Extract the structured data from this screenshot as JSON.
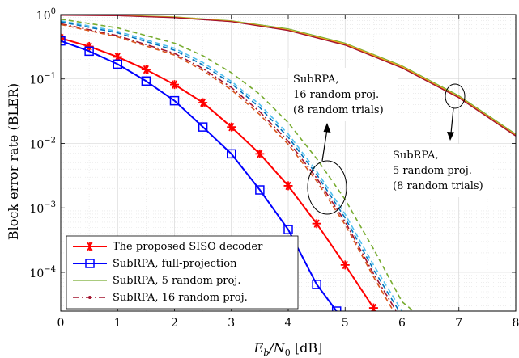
{
  "chart_data": {
    "type": "line",
    "title": "",
    "xlabel_main": "E",
    "xlabel_sub_b": "b",
    "xlabel_mid": "/N",
    "xlabel_sub_0": "0",
    "xlabel_unit": " [dB]",
    "ylabel": "Block error rate (BLER)",
    "xlim": [
      0,
      8
    ],
    "ylim": [
      2.5e-05,
      1
    ],
    "yscale": "log",
    "grid": true,
    "legend_position": "bottom-left",
    "x_ticks": [
      0,
      1,
      2,
      3,
      4,
      5,
      6,
      7,
      8
    ],
    "x_tick_labels": [
      "0",
      "1",
      "2",
      "3",
      "4",
      "5",
      "6",
      "7",
      "8"
    ],
    "y_ticks": [
      {
        "value": 1,
        "base": "10",
        "exp": "0"
      },
      {
        "value": 0.1,
        "base": "10",
        "exp": "−1"
      },
      {
        "value": 0.01,
        "base": "10",
        "exp": "−2"
      },
      {
        "value": 0.001,
        "base": "10",
        "exp": "−3"
      },
      {
        "value": 0.0001,
        "base": "10",
        "exp": "−4"
      }
    ],
    "legend": [
      {
        "label": "The proposed SISO decoder",
        "color": "#ff0000",
        "style": "solid",
        "marker": "star"
      },
      {
        "label": "SubRPA, full-projection",
        "color": "#0000ff",
        "style": "solid",
        "marker": "square"
      },
      {
        "label": "SubRPA, 5 random proj.",
        "color": "#77ac30",
        "style": "solid",
        "marker": "none"
      },
      {
        "label": "SubRPA, 16 random proj.",
        "color": "#a2142f",
        "style": "dashdot",
        "marker": "dot"
      }
    ],
    "series": [
      {
        "name": "The proposed SISO decoder",
        "color": "#ff0000",
        "style": "solid",
        "width": 2,
        "marker": "star",
        "x": [
          0,
          0.5,
          1,
          1.5,
          2,
          2.5,
          3,
          3.5,
          4,
          4.5,
          5,
          5.5
        ],
        "y": [
          0.43,
          0.32,
          0.22,
          0.14,
          0.082,
          0.043,
          0.018,
          0.0069,
          0.0022,
          0.00057,
          0.00013,
          2.8e-05
        ]
      },
      {
        "name": "SubRPA, full-projection",
        "color": "#0000ff",
        "style": "solid",
        "width": 2,
        "marker": "square",
        "x": [
          0,
          0.5,
          1,
          1.5,
          2,
          2.5,
          3,
          3.5,
          4,
          4.5,
          4.85
        ],
        "y": [
          0.39,
          0.27,
          0.17,
          0.093,
          0.046,
          0.018,
          0.0069,
          0.0019,
          0.00046,
          6.5e-05,
          2.5e-05
        ]
      },
      {
        "name": "",
        "color": "#77ac30",
        "style": "solid",
        "width": 1.2,
        "marker": "none",
        "x": [
          0,
          1,
          2,
          3,
          4,
          5,
          6,
          7,
          8
        ],
        "y": [
          0.99,
          0.98,
          0.92,
          0.8,
          0.6,
          0.36,
          0.16,
          0.055,
          0.014
        ]
      },
      {
        "name": "",
        "color": "#edb120",
        "style": "solid",
        "width": 1.2,
        "marker": "none",
        "x": [
          0,
          1,
          2,
          3,
          4,
          5,
          6,
          7,
          8
        ],
        "y": [
          0.985,
          0.97,
          0.91,
          0.79,
          0.58,
          0.35,
          0.155,
          0.053,
          0.0135
        ]
      },
      {
        "name": "",
        "color": "#d95319",
        "style": "solid",
        "width": 1.2,
        "marker": "none",
        "x": [
          0,
          1,
          2,
          3,
          4,
          5,
          6,
          7,
          8
        ],
        "y": [
          0.98,
          0.965,
          0.9,
          0.78,
          0.57,
          0.34,
          0.15,
          0.052,
          0.0133
        ]
      },
      {
        "name": "",
        "color": "#a2142f",
        "style": "solid",
        "width": 1.2,
        "marker": "none",
        "x": [
          0,
          1,
          2,
          3,
          4,
          5,
          6,
          7,
          8
        ],
        "y": [
          0.975,
          0.96,
          0.895,
          0.775,
          0.565,
          0.335,
          0.148,
          0.051,
          0.013
        ]
      },
      {
        "name": "",
        "color": "#77ac30",
        "style": "dashed",
        "width": 1.6,
        "marker": "none",
        "x": [
          0,
          1,
          2,
          2.5,
          3,
          3.5,
          4,
          4.5,
          5,
          5.5,
          6,
          6.2
        ],
        "y": [
          0.85,
          0.62,
          0.36,
          0.23,
          0.125,
          0.058,
          0.021,
          0.0058,
          0.00135,
          0.00023,
          3.5e-05,
          2.5e-05
        ]
      },
      {
        "name": "",
        "color": "#4dbeee",
        "style": "dashed",
        "width": 1.6,
        "marker": "none",
        "x": [
          0,
          1,
          2,
          2.5,
          3,
          3.5,
          4,
          4.5,
          5,
          5.5,
          6.0
        ],
        "y": [
          0.8,
          0.55,
          0.3,
          0.18,
          0.092,
          0.04,
          0.014,
          0.0037,
          0.0008,
          0.00013,
          2.5e-05
        ]
      },
      {
        "name": "",
        "color": "#0072bd",
        "style": "dashed",
        "width": 1.6,
        "marker": "none",
        "x": [
          0,
          1,
          2,
          2.5,
          3,
          3.5,
          4,
          4.5,
          5,
          5.5,
          5.95
        ],
        "y": [
          0.77,
          0.52,
          0.28,
          0.165,
          0.085,
          0.036,
          0.0125,
          0.0033,
          0.0007,
          0.00011,
          2.5e-05
        ]
      },
      {
        "name": "",
        "color": "#a2142f",
        "style": "dashdot",
        "width": 1.6,
        "marker": "none",
        "x": [
          0,
          1,
          2,
          2.5,
          3,
          3.5,
          4,
          4.5,
          5,
          5.5,
          5.9
        ],
        "y": [
          0.72,
          0.47,
          0.25,
          0.145,
          0.074,
          0.031,
          0.0108,
          0.0029,
          0.00061,
          9.5e-05,
          2.5e-05
        ]
      },
      {
        "name": "",
        "color": "#d95319",
        "style": "dashed",
        "width": 1.6,
        "marker": "none",
        "x": [
          0,
          1,
          2,
          2.5,
          3,
          3.5,
          4,
          4.5,
          5,
          5.5,
          5.85
        ],
        "y": [
          0.7,
          0.45,
          0.235,
          0.135,
          0.068,
          0.028,
          0.0097,
          0.0026,
          0.00055,
          8.5e-05,
          2.5e-05
        ]
      }
    ],
    "annotations": [
      {
        "lines": [
          "SubRPA,",
          "16 random proj.",
          "(8 random trials)"
        ]
      },
      {
        "lines": [
          "SubRPA,",
          "5 random proj.",
          "(8 random trials)"
        ]
      }
    ]
  }
}
